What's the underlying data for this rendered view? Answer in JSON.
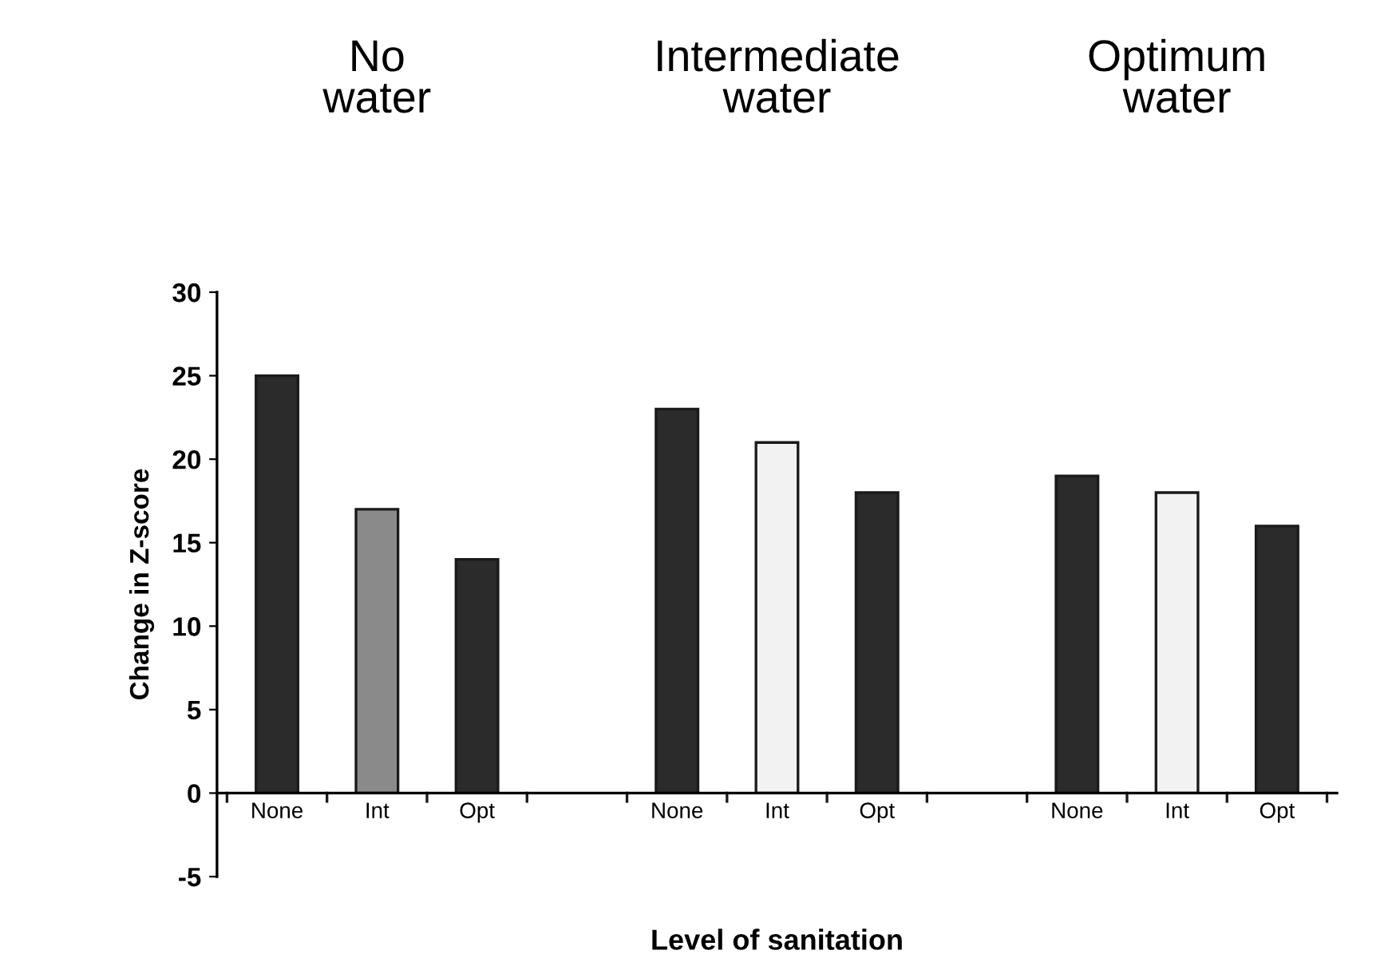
{
  "chart_data": {
    "type": "bar",
    "categories": [
      "None",
      "Int",
      "Opt",
      null,
      "None",
      "Int",
      "Opt",
      null,
      "None",
      "Int",
      "Opt"
    ],
    "values": [
      25,
      17,
      14,
      null,
      23,
      21,
      18,
      null,
      19,
      18,
      16
    ],
    "colors": [
      "#2b2b2b",
      "#8a8a8a",
      "#2b2b2b",
      null,
      "#2b2b2b",
      "#f2f2f2",
      "#2b2b2b",
      null,
      "#2b2b2b",
      "#f2f2f2",
      "#2b2b2b"
    ],
    "xlabel": "Level of sanitation",
    "ylabel": "Change in Z-score",
    "ylim": [
      -5,
      30
    ],
    "yticks": [
      -5,
      0,
      5,
      10,
      15,
      20,
      25,
      30
    ],
    "annotations": [
      "No\nwater",
      "Intermediate\nwater",
      "Optimum\nwater"
    ],
    "grid": false,
    "legend": false
  }
}
